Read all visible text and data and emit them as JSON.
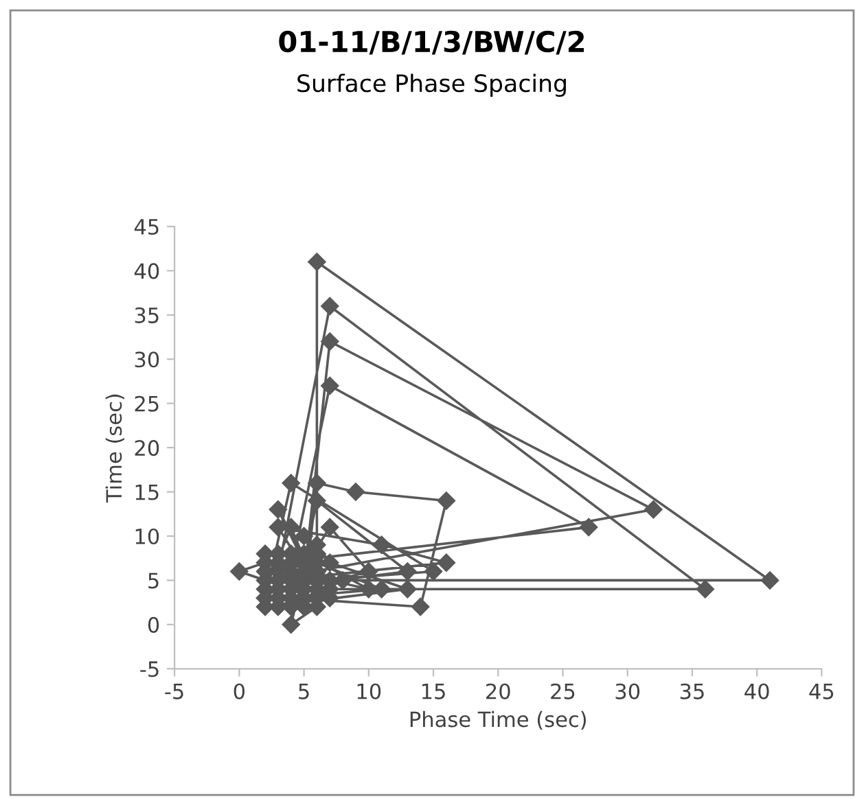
{
  "chart_data": {
    "type": "line",
    "title": "01-11/B/1/3/BW/C/2",
    "subtitle": "Surface Phase Spacing",
    "xlabel": "Phase Time (sec)",
    "ylabel": "Time (sec)",
    "xlim": [
      -5,
      45
    ],
    "xticks": [
      -5,
      0,
      5,
      10,
      15,
      20,
      25,
      30,
      35,
      40,
      45
    ],
    "ylim": [
      -5,
      45
    ],
    "yticks": [
      -5,
      0,
      5,
      10,
      15,
      20,
      25,
      30,
      35,
      40,
      45
    ],
    "grid": false,
    "legend": false,
    "marker": "diamond",
    "line_style": "solid",
    "series": [
      {
        "color": "#595959",
        "x": [
          6,
          6,
          41,
          4,
          3,
          7,
          36,
          3,
          5,
          7,
          32,
          2,
          4,
          7,
          27,
          3,
          5,
          6,
          9,
          16,
          14,
          4,
          2,
          4,
          15,
          6,
          3,
          5,
          6,
          13,
          2,
          4,
          6,
          3,
          11,
          16,
          3,
          6,
          4,
          2,
          5,
          7,
          13,
          2,
          6,
          0,
          2,
          5,
          4,
          6,
          3,
          4,
          7,
          10,
          5,
          3,
          11,
          6,
          2,
          4,
          7,
          10,
          5,
          3,
          6,
          8,
          4,
          7,
          5,
          6,
          2,
          7
        ],
        "values": [
          8,
          41,
          5,
          5,
          6,
          36,
          4,
          4,
          5,
          32,
          13,
          5,
          6,
          27,
          11,
          7,
          3,
          16,
          15,
          14,
          2,
          3,
          3,
          16,
          6,
          5,
          13,
          7,
          14,
          6,
          4,
          11,
          4,
          11,
          9,
          7,
          5,
          6,
          8,
          8,
          2,
          7,
          4,
          2,
          3,
          6,
          7,
          6,
          0,
          2,
          2,
          4,
          11,
          6,
          4,
          3,
          4,
          7,
          6,
          7,
          5,
          4,
          8,
          8,
          9,
          5,
          2,
          4,
          10,
          8,
          3,
          3
        ]
      }
    ]
  }
}
